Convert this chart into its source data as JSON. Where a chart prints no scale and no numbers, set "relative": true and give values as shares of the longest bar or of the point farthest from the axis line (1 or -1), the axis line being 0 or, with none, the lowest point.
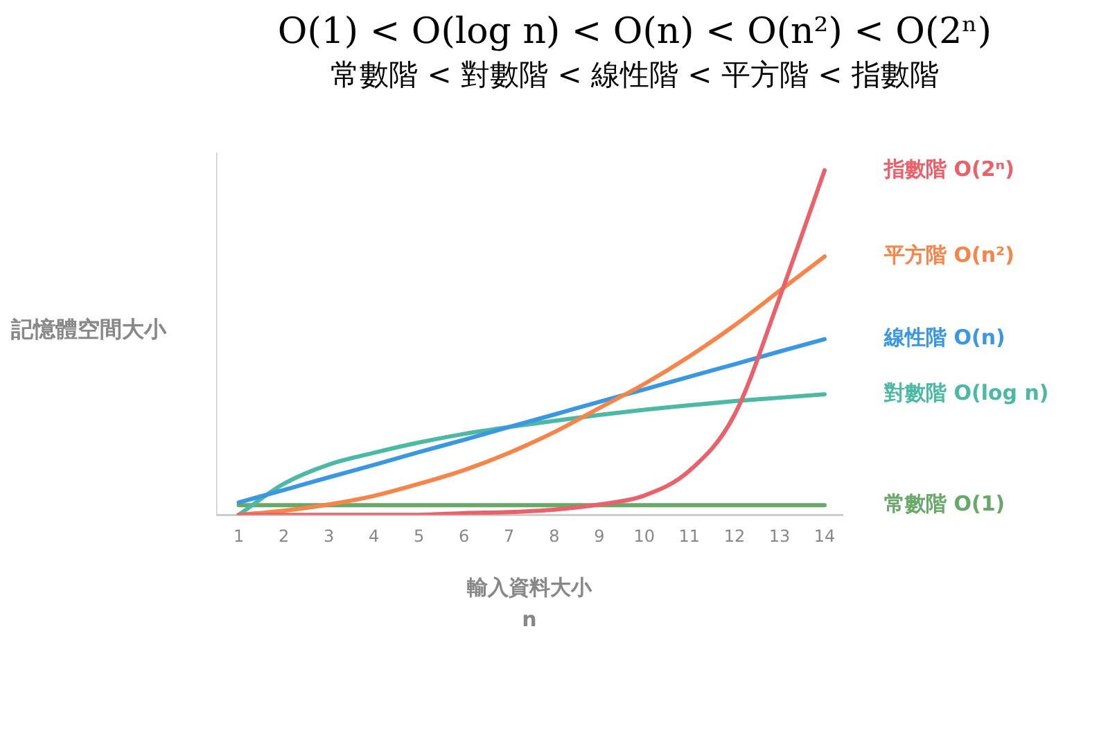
{
  "chart_data": {
    "type": "line",
    "title": "O(1) < O(log n) < O(n) < O(n²) < O(2ⁿ)",
    "subtitle": "常數階 < 對數階 < 線性階 < 平方階 < 指數階",
    "xlabel": "輸入資料大小",
    "ylabel": "記憶體空間大小",
    "annotations": [
      "n"
    ],
    "relative": true,
    "x": [
      1,
      2,
      3,
      4,
      5,
      6,
      7,
      8,
      9,
      10,
      11,
      12,
      13,
      14
    ],
    "xlim": [
      0.5,
      14.4
    ],
    "xticks": [
      1,
      2,
      3,
      4,
      5,
      6,
      7,
      8,
      9,
      10,
      11,
      12,
      13,
      14
    ],
    "grid": false,
    "legend": false,
    "marker": "none",
    "line_style": "solid",
    "series": [
      {
        "name": "指數階 O(2ⁿ)",
        "color": "#e8616b",
        "values": [
          0,
          0,
          0,
          0,
          0,
          0.005,
          0.008,
          0.015,
          0.03,
          0.056,
          0.128,
          0.29,
          0.63,
          1
        ]
      },
      {
        "name": "平方階 O(n²)",
        "color": "#f5854a",
        "values": [
          0,
          0.012,
          0.03,
          0.055,
          0.09,
          0.13,
          0.18,
          0.24,
          0.31,
          0.38,
          0.46,
          0.55,
          0.65,
          0.75
        ]
      },
      {
        "name": "線性階 O(n)",
        "color": "#3b97df",
        "values": [
          0.036,
          0.072,
          0.109,
          0.145,
          0.182,
          0.218,
          0.255,
          0.291,
          0.328,
          0.364,
          0.401,
          0.437,
          0.474,
          0.51
        ]
      },
      {
        "name": "對數階 O(log n)",
        "color": "#4db8a3",
        "values": [
          0,
          0.09,
          0.146,
          0.18,
          0.21,
          0.235,
          0.255,
          0.273,
          0.29,
          0.305,
          0.318,
          0.33,
          0.34,
          0.35
        ]
      },
      {
        "name": "常數階 O(1)",
        "color": "#6aa86a",
        "values": [
          0.028,
          0.028,
          0.028,
          0.028,
          0.028,
          0.028,
          0.028,
          0.028,
          0.028,
          0.028,
          0.028,
          0.028,
          0.028,
          0.028
        ]
      }
    ]
  }
}
